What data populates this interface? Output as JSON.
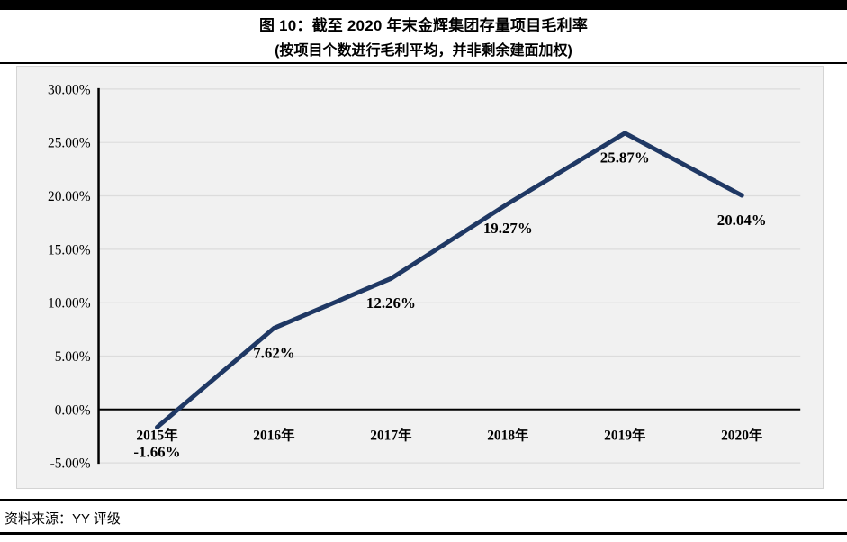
{
  "header": {
    "title": "图 10：截至 2020 年末金辉集团存量项目毛利率",
    "subtitle": "(按项目个数进行毛利平均，并非剩余建面加权)"
  },
  "footer": {
    "source_label": "资料来源：YY 评级"
  },
  "chart_data": {
    "type": "line",
    "title": "截至 2020 年末金辉集团存量项目毛利率",
    "categories": [
      "2015年",
      "2016年",
      "2017年",
      "2018年",
      "2019年",
      "2020年"
    ],
    "series": [
      {
        "name": "存量项目毛利率",
        "values": [
          -1.66,
          7.62,
          12.26,
          19.27,
          25.87,
          20.04
        ]
      }
    ],
    "data_labels": [
      "-1.66%",
      "7.62%",
      "12.26%",
      "19.27%",
      "25.87%",
      "20.04%"
    ],
    "y_ticks": [
      "30.00%",
      "25.00%",
      "20.00%",
      "15.00%",
      "10.00%",
      "5.00%",
      "0.00%",
      "-5.00%"
    ],
    "y_tick_values": [
      30,
      25,
      20,
      15,
      10,
      5,
      0,
      -5
    ],
    "ylim": [
      -5,
      30
    ],
    "xlabel": "",
    "ylabel": "",
    "grid": true,
    "legend": "none",
    "line_color": "#1F3864",
    "plot_background": "#F1F1F1",
    "gridline_color": "#DCDCDC",
    "axis_color": "#000000"
  }
}
